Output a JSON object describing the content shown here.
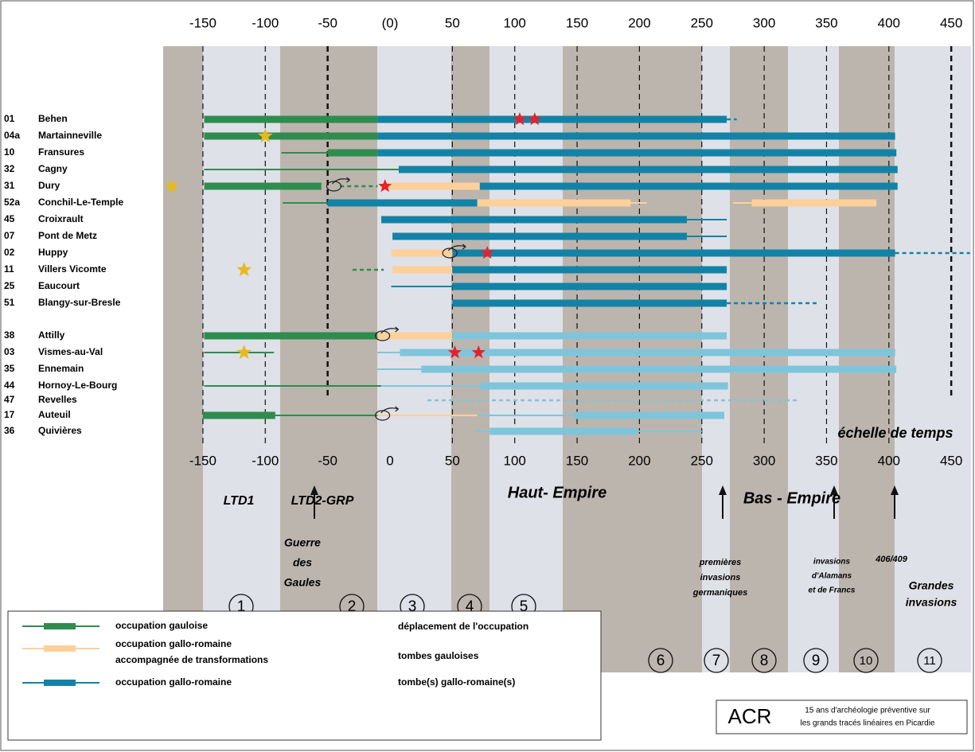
{
  "scale": {
    "top_ticks": [
      -150,
      -100,
      -50,
      {
        "value": 0,
        "label": "(0)"
      },
      50,
      100,
      150,
      200,
      250,
      300,
      350,
      400,
      450
    ],
    "bottom_ticks": [
      -150,
      -100,
      -50,
      0,
      50,
      100,
      150,
      200,
      250,
      300,
      350,
      400,
      450
    ],
    "caption": "échelle de temps"
  },
  "sites": [
    {
      "code": "01",
      "name": "Behen",
      "spans": [
        [
          "#2d8c4e",
          "thick",
          -149,
          -10
        ],
        [
          "#1283a6",
          "thick",
          -10,
          270
        ],
        [
          "#1283a6",
          "dash",
          270,
          278
        ]
      ],
      "red_stars": [
        104,
        116
      ]
    },
    {
      "code": "04a",
      "name": "Martainneville",
      "spans": [
        [
          "#2d8c4e",
          "thick",
          -149,
          -10
        ],
        [
          "#1283a6",
          "thick",
          -10,
          405
        ]
      ],
      "gold_stars": [
        -100
      ]
    },
    {
      "code": "10",
      "name": "Fransures",
      "spans": [
        [
          "#2d8c4e",
          "thin",
          -87,
          -50
        ],
        [
          "#2d8c4e",
          "thick",
          -50,
          -10
        ],
        [
          "#1283a6",
          "thick",
          -10,
          406
        ]
      ]
    },
    {
      "code": "32",
      "name": "Cagny",
      "spans": [
        [
          "#2d8c4e",
          "thin",
          -149,
          7
        ],
        [
          "#1283a6",
          "thick",
          7,
          407
        ]
      ]
    },
    {
      "code": "31",
      "name": "Dury",
      "spans": [
        [
          "#2d8c4e",
          "thick",
          -149,
          -55
        ],
        [
          "#2d8c4e",
          "dash",
          -40,
          -10
        ],
        [
          "#fdd09a",
          "thick",
          -5,
          72
        ],
        [
          "#1283a6",
          "thick",
          72,
          407
        ]
      ],
      "gold_stars": [
        -175
      ],
      "red_stars": [
        -4
      ],
      "shifts": [
        -45
      ]
    },
    {
      "code": "52a",
      "name": "Conchil-Le-Temple",
      "spans": [
        [
          "#2d8c4e",
          "thin",
          -86,
          -50
        ],
        [
          "#1283a6",
          "thick",
          -50,
          70
        ],
        [
          "#fdd09a",
          "thick",
          70,
          193
        ],
        [
          "#fdd09a",
          "thin",
          193,
          206
        ],
        [
          "#fdd09a",
          "thin",
          275,
          290
        ],
        [
          "#fdd09a",
          "thick",
          290,
          390
        ]
      ]
    },
    {
      "code": "45",
      "name": "Croixrault",
      "spans": [
        [
          "#1283a6",
          "thick",
          -7,
          238
        ],
        [
          "#1283a6",
          "thin",
          238,
          270
        ]
      ]
    },
    {
      "code": "07",
      "name": "Pont de Metz",
      "spans": [
        [
          "#1283a6",
          "thick",
          2,
          238
        ],
        [
          "#1283a6",
          "thin",
          238,
          270
        ]
      ]
    },
    {
      "code": "02",
      "name": "Huppy",
      "spans": [
        [
          "#fdd09a",
          "thick",
          1,
          50
        ],
        [
          "#1283a6",
          "thick",
          50,
          405
        ],
        [
          "#1283a6",
          "dash",
          405,
          465
        ]
      ],
      "red_stars": [
        78
      ],
      "shifts": [
        48
      ]
    },
    {
      "code": "11",
      "name": "Villers Vicomte",
      "spans": [
        [
          "#2d8c4e",
          "dash",
          -30,
          -5
        ],
        [
          "#fdd09a",
          "thick",
          2,
          50
        ],
        [
          "#1283a6",
          "thick",
          50,
          270
        ]
      ],
      "gold_stars": [
        -117
      ]
    },
    {
      "code": "25",
      "name": "Eaucourt",
      "spans": [
        [
          "#1283a6",
          "thin",
          1,
          50
        ],
        [
          "#1283a6",
          "thick",
          50,
          270
        ]
      ]
    },
    {
      "code": "51",
      "name": "Blangy-sur-Bresle",
      "spans": [
        [
          "#1283a6",
          "thick",
          50,
          270
        ],
        [
          "#1283a6",
          "dash",
          270,
          342
        ]
      ]
    },
    {
      "code": "38",
      "name": "Attilly",
      "spans": [
        [
          "#2d8c4e",
          "thick",
          -149,
          -10
        ],
        [
          "#fdd09a",
          "thick",
          -10,
          50
        ],
        [
          "#7ec5dc",
          "thick",
          50,
          270
        ]
      ],
      "shifts": [
        -6
      ]
    },
    {
      "code": "03",
      "name": "Vismes-au-Val",
      "spans": [
        [
          "#2d8c4e",
          "thin",
          -149,
          -93
        ],
        [
          "#7ec5dc",
          "thin",
          -10,
          8
        ],
        [
          "#7ec5dc",
          "thick",
          8,
          405
        ]
      ],
      "gold_stars": [
        -117
      ],
      "red_stars": [
        52,
        71
      ]
    },
    {
      "code": "35",
      "name": "Ennemain",
      "spans": [
        [
          "#7ec5dc",
          "thin",
          -10,
          25
        ],
        [
          "#7ec5dc",
          "thick",
          25,
          406
        ]
      ]
    },
    {
      "code": "44",
      "name": "Hornoy-Le-Bourg",
      "spans": [
        [
          "#2d8c4e",
          "thin",
          -149,
          -7
        ],
        [
          "#7ec5dc",
          "thin",
          -7,
          72
        ],
        [
          "#7ec5dc",
          "thick",
          72,
          271
        ]
      ]
    },
    {
      "code": "47",
      "name": "Revelles",
      "spans": [
        [
          "#7ec5dc",
          "dash",
          30,
          328
        ]
      ]
    },
    {
      "code": "17",
      "name": "Auteuil",
      "spans": [
        [
          "#2d8c4e",
          "thick",
          -150,
          -92
        ],
        [
          "#2d8c4e",
          "thin",
          -92,
          -10
        ],
        [
          "#fdd09a",
          "thin",
          -10,
          70
        ],
        [
          "#7ec5dc",
          "thin",
          70,
          150
        ],
        [
          "#7ec5dc",
          "thick",
          148,
          268
        ]
      ],
      "shifts": [
        -6
      ]
    },
    {
      "code": "36",
      "name": "Quivières",
      "spans": [
        [
          "#7ec5dc",
          "thin",
          68,
          80
        ],
        [
          "#7ec5dc",
          "thick",
          80,
          198
        ],
        [
          "#7ec5dc",
          "thin",
          198,
          250
        ]
      ]
    }
  ],
  "periods": [
    "LTD1",
    "LTD2-GRP",
    "Haut- Empire",
    "Bas - Empire"
  ],
  "events": [
    {
      "lines": [
        "Guerre",
        "des",
        "Gaules"
      ]
    },
    {
      "lines": [
        "premières",
        "invasions",
        "germaniques"
      ]
    },
    {
      "lines": [
        "invasions",
        "d'Alamans",
        "et de Francs"
      ]
    },
    {
      "lines": [
        "406/409"
      ]
    },
    {
      "lines": [
        "Grandes",
        "invasions"
      ]
    }
  ],
  "phases": [
    "1",
    "2",
    "3",
    "4",
    "5",
    "6",
    "7",
    "8",
    "9",
    "10",
    "11"
  ],
  "legend": [
    "occupation gauloise",
    "occupation gallo-romaine",
    "accompagnée de transformations",
    "occupation gallo-romaine",
    "déplacement de l'occupation",
    "tombes gauloises",
    "tombe(s) gallo-romaine(s)"
  ],
  "credit": {
    "title": "ACR",
    "lines": [
      "15 ans d'archéologie préventive sur",
      "les grands tracés linéaires en Picardie"
    ]
  }
}
